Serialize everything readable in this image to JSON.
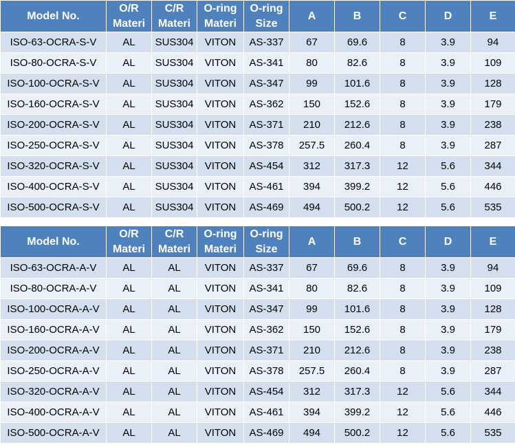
{
  "table1": {
    "headers": [
      "Model No.",
      "O/R|Materi",
      "C/R|Materi",
      "O-ring|Materi",
      "O-ring|Size",
      "A",
      "B",
      "C",
      "D",
      "E"
    ],
    "rows": [
      [
        "ISO-63-OCRA-S-V",
        "AL",
        "SUS304",
        "VITON",
        "AS-337",
        "67",
        "69.6",
        "8",
        "3.9",
        "94"
      ],
      [
        "ISO-80-OCRA-S-V",
        "AL",
        "SUS304",
        "VITON",
        "AS-341",
        "80",
        "82.6",
        "8",
        "3.9",
        "109"
      ],
      [
        "ISO-100-OCRA-S-V",
        "AL",
        "SUS304",
        "VITON",
        "AS-347",
        "99",
        "101.6",
        "8",
        "3.9",
        "128"
      ],
      [
        "ISO-160-OCRA-S-V",
        "AL",
        "SUS304",
        "VITON",
        "AS-362",
        "150",
        "152.6",
        "8",
        "3.9",
        "179"
      ],
      [
        "ISO-200-OCRA-S-V",
        "AL",
        "SUS304",
        "VITON",
        "AS-371",
        "210",
        "212.6",
        "8",
        "3.9",
        "238"
      ],
      [
        "ISO-250-OCRA-S-V",
        "AL",
        "SUS304",
        "VITON",
        "AS-378",
        "257.5",
        "260.4",
        "8",
        "3.9",
        "287"
      ],
      [
        "ISO-320-OCRA-S-V",
        "AL",
        "SUS304",
        "VITON",
        "AS-454",
        "312",
        "317.3",
        "12",
        "5.6",
        "344"
      ],
      [
        "ISO-400-OCRA-S-V",
        "AL",
        "SUS304",
        "VITON",
        "AS-461",
        "394",
        "399.2",
        "12",
        "5.6",
        "446"
      ],
      [
        "ISO-500-OCRA-S-V",
        "AL",
        "SUS304",
        "VITON",
        "AS-469",
        "494",
        "500.2",
        "12",
        "5.6",
        "535"
      ]
    ]
  },
  "table2": {
    "headers": [
      "Model No.",
      "O/R|Materi",
      "C/R|Materi",
      "O-ring|Materi",
      "O-ring|Size",
      "A",
      "B",
      "C",
      "D",
      "E"
    ],
    "rows": [
      [
        "ISO-63-OCRA-A-V",
        "AL",
        "AL",
        "VITON",
        "AS-337",
        "67",
        "69.6",
        "8",
        "3.9",
        "94"
      ],
      [
        "ISO-80-OCRA-A-V",
        "AL",
        "AL",
        "VITON",
        "AS-341",
        "80",
        "82.6",
        "8",
        "3.9",
        "109"
      ],
      [
        "ISO-100-OCRA-A-V",
        "AL",
        "AL",
        "VITON",
        "AS-347",
        "99",
        "101.6",
        "8",
        "3.9",
        "128"
      ],
      [
        "ISO-160-OCRA-A-V",
        "AL",
        "AL",
        "VITON",
        "AS-362",
        "150",
        "152.6",
        "8",
        "3.9",
        "179"
      ],
      [
        "ISO-200-OCRA-A-V",
        "AL",
        "AL",
        "VITON",
        "AS-371",
        "210",
        "212.6",
        "8",
        "3.9",
        "238"
      ],
      [
        "ISO-250-OCRA-A-V",
        "AL",
        "AL",
        "VITON",
        "AS-378",
        "257.5",
        "260.4",
        "8",
        "3.9",
        "287"
      ],
      [
        "ISO-320-OCRA-A-V",
        "AL",
        "AL",
        "VITON",
        "AS-454",
        "312",
        "317.3",
        "12",
        "5.6",
        "344"
      ],
      [
        "ISO-400-OCRA-A-V",
        "AL",
        "AL",
        "VITON",
        "AS-461",
        "394",
        "399.2",
        "12",
        "5.6",
        "446"
      ],
      [
        "ISO-500-OCRA-A-V",
        "AL",
        "AL",
        "VITON",
        "AS-469",
        "494",
        "500.2",
        "12",
        "5.6",
        "535"
      ]
    ]
  },
  "colors": {
    "header_bg": "#4f81bd",
    "row_odd": "#d3dfee",
    "row_even": "#eaf0f7"
  }
}
